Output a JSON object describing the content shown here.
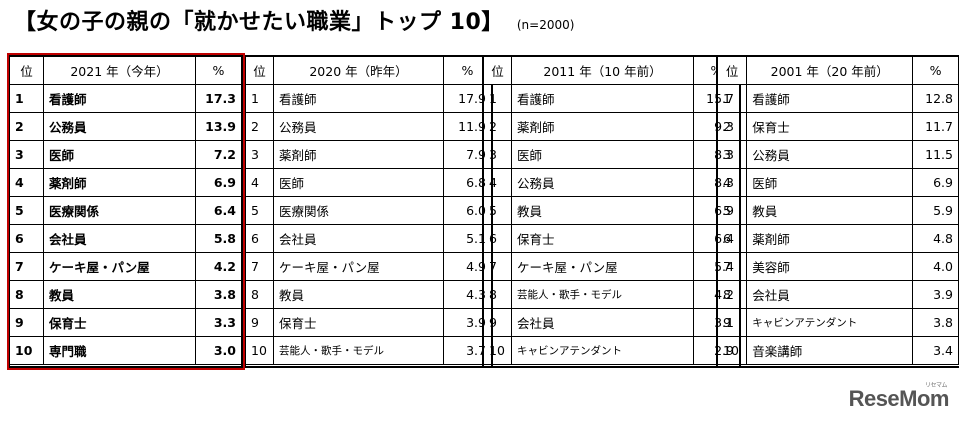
{
  "title": "【女の子の親の「就かせたい職業」トップ 10】",
  "note": "(n=2000)",
  "chart_data": {
    "type": "table",
    "tables": [
      {
        "header": [
          "位",
          "2021 年（今年）",
          "%"
        ],
        "rows": [
          [
            "1",
            "看護師",
            "17.3"
          ],
          [
            "2",
            "公務員",
            "13.9"
          ],
          [
            "3",
            "医師",
            "7.2"
          ],
          [
            "4",
            "薬剤師",
            "6.9"
          ],
          [
            "5",
            "医療関係",
            "6.4"
          ],
          [
            "6",
            "会社員",
            "5.8"
          ],
          [
            "7",
            "ケーキ屋・パン屋",
            "4.2"
          ],
          [
            "8",
            "教員",
            "3.8"
          ],
          [
            "9",
            "保育士",
            "3.3"
          ],
          [
            "10",
            "専門職",
            "3.0"
          ]
        ]
      },
      {
        "header": [
          "位",
          "2020 年（昨年）",
          "%"
        ],
        "rows": [
          [
            "1",
            "看護師",
            "17.9"
          ],
          [
            "2",
            "公務員",
            "11.9"
          ],
          [
            "3",
            "薬剤師",
            "7.9"
          ],
          [
            "4",
            "医師",
            "6.8"
          ],
          [
            "5",
            "医療関係",
            "6.0"
          ],
          [
            "6",
            "会社員",
            "5.1"
          ],
          [
            "7",
            "ケーキ屋・パン屋",
            "4.9"
          ],
          [
            "8",
            "教員",
            "4.3"
          ],
          [
            "9",
            "保育士",
            "3.9"
          ],
          [
            "10",
            "芸能人・歌手・モデル",
            "3.7"
          ]
        ]
      },
      {
        "header": [
          "位",
          "2011 年（10 年前）",
          "%"
        ],
        "rows": [
          [
            "1",
            "看護師",
            "15.7"
          ],
          [
            "2",
            "薬剤師",
            "9.3"
          ],
          [
            "3",
            "医師",
            "8.3"
          ],
          [
            "4",
            "公務員",
            "8.3"
          ],
          [
            "5",
            "教員",
            "6.9"
          ],
          [
            "6",
            "保育士",
            "6.4"
          ],
          [
            "7",
            "ケーキ屋・パン屋",
            "5.4"
          ],
          [
            "8",
            "芸能人・歌手・モデル",
            "4.2"
          ],
          [
            "9",
            "会社員",
            "3.1"
          ],
          [
            "10",
            "キャビンアテンダント",
            "2.9"
          ]
        ]
      },
      {
        "header": [
          "位",
          "2001 年（20 年前）",
          "%"
        ],
        "rows": [
          [
            "1",
            "看護師",
            "12.8"
          ],
          [
            "2",
            "保育士",
            "11.7"
          ],
          [
            "3",
            "公務員",
            "11.5"
          ],
          [
            "4",
            "医師",
            "6.9"
          ],
          [
            "5",
            "教員",
            "5.9"
          ],
          [
            "6",
            "薬剤師",
            "4.8"
          ],
          [
            "7",
            "美容師",
            "4.0"
          ],
          [
            "8",
            "会社員",
            "3.9"
          ],
          [
            "9",
            "キャビンアテンダント",
            "3.8"
          ],
          [
            "10",
            "音楽講師",
            "3.4"
          ]
        ]
      }
    ],
    "highlight_color": "#c00000"
  },
  "logo": {
    "text": "ReseMom",
    "sub": "リセマム"
  }
}
